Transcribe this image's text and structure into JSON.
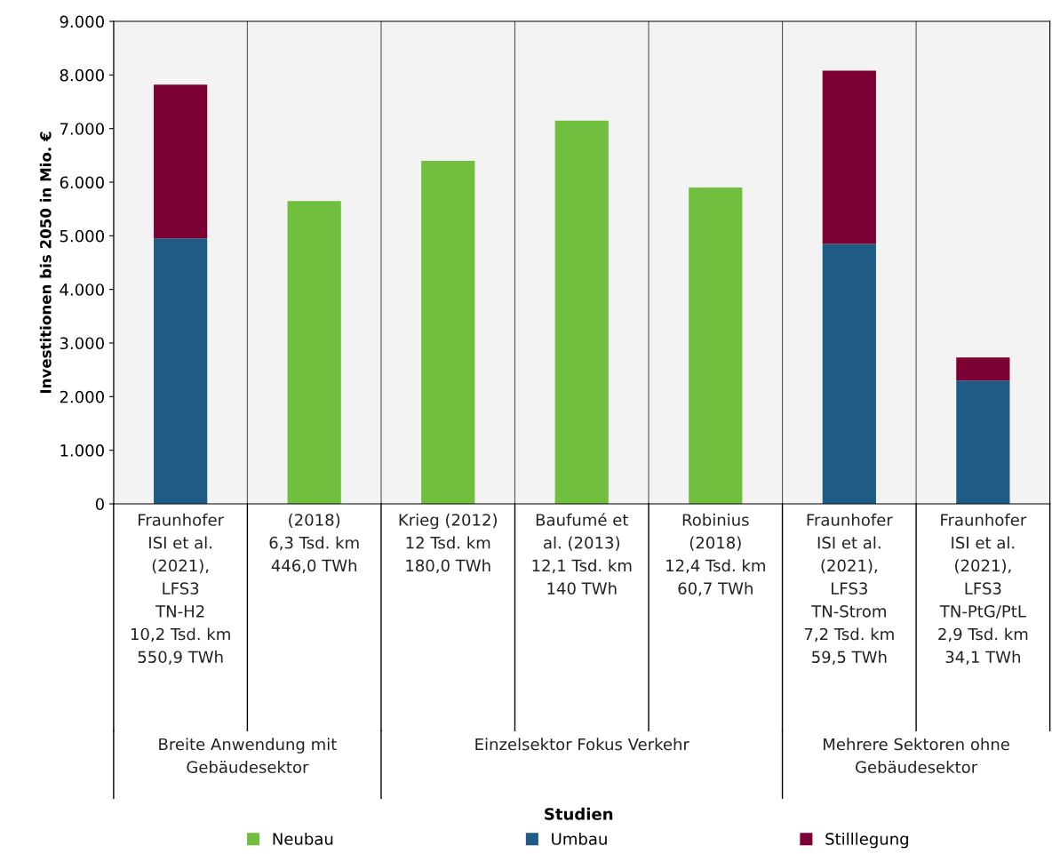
{
  "chart_data": {
    "type": "bar",
    "stacked": true,
    "categories": [
      "Fraunhofer\nISI et al.\n(2021),\nLFS3\nTN-H2\n10,2 Tsd. km\n550,9 TWh",
      "(2018)\n6,3 Tsd. km\n446,0 TWh",
      "Krieg (2012)\n12 Tsd. km\n180,0 TWh",
      "Baufumé et\nal. (2013)\n12,1 Tsd. km\n140 TWh",
      "Robinius\n(2018)\n12,4 Tsd. km\n60,7 TWh",
      "Fraunhofer\nISI et al.\n(2021),\nLFS3\nTN-Strom\n7,2 Tsd. km\n59,5 TWh",
      "Fraunhofer\nISI et al.\n(2021),\nLFS3\nTN-PtG/PtL\n2,9 Tsd. km\n34,1 TWh"
    ],
    "series": [
      {
        "name": "Neubau",
        "color": "#70bf3f",
        "values": [
          null,
          5650,
          6400,
          7150,
          5900,
          null,
          null
        ]
      },
      {
        "name": "Umbau",
        "color": "#1f5c85",
        "values": [
          4950,
          null,
          null,
          null,
          null,
          4850,
          2300
        ]
      },
      {
        "name": "Stilllegung",
        "color": "#7d0034",
        "values": [
          2870,
          null,
          null,
          null,
          null,
          3230,
          430
        ]
      }
    ],
    "ylabel": "Investitionen bis 2050 in Mio. €",
    "ylim": [
      0,
      9000
    ],
    "yticks": [
      {
        "value": 0,
        "label": "0"
      },
      {
        "value": 1000,
        "label": "1.000"
      },
      {
        "value": 2000,
        "label": "2.000"
      },
      {
        "value": 3000,
        "label": "3.000"
      },
      {
        "value": 4000,
        "label": "4.000"
      },
      {
        "value": 5000,
        "label": "5.000"
      },
      {
        "value": 6000,
        "label": "6.000"
      },
      {
        "value": 7000,
        "label": "7.000"
      },
      {
        "value": 8000,
        "label": "8.000"
      },
      {
        "value": 9000,
        "label": "9.000"
      }
    ],
    "annotations": [
      "Breite Anwendung mit\nGebäudesektor",
      "Einzelsektor Fokus Verkehr",
      "Mehrere Sektoren ohne\nGebäudesektor",
      "Studien"
    ],
    "legend": "bottom"
  }
}
